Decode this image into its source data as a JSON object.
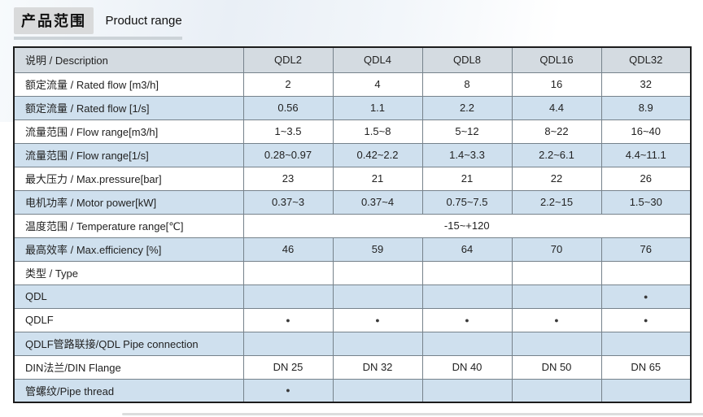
{
  "header": {
    "title_cn": "产品范围",
    "title_en": "Product range"
  },
  "table": {
    "columns": [
      "说明 / Description",
      "QDL2",
      "QDL4",
      "QDL8",
      "QDL16",
      "QDL32"
    ],
    "rows": [
      {
        "label": "额定流量 / Rated flow [m3/h]",
        "values": [
          "2",
          "4",
          "8",
          "16",
          "32"
        ],
        "shaded": false
      },
      {
        "label": "额定流量 / Rated flow [1/s]",
        "values": [
          "0.56",
          "1.1",
          "2.2",
          "4.4",
          "8.9"
        ],
        "shaded": true
      },
      {
        "label": "流量范围 / Flow range[m3/h]",
        "values": [
          "1~3.5",
          "1.5~8",
          "5~12",
          "8~22",
          "16~40"
        ],
        "shaded": false
      },
      {
        "label": "流量范围 / Flow range[1/s]",
        "values": [
          "0.28~0.97",
          "0.42~2.2",
          "1.4~3.3",
          "2.2~6.1",
          "4.4~11.1"
        ],
        "shaded": true
      },
      {
        "label": "最大压力 / Max.pressure[bar]",
        "values": [
          "23",
          "21",
          "21",
          "22",
          "26"
        ],
        "shaded": false
      },
      {
        "label": "电机功率 / Motor power[kW]",
        "values": [
          "0.37~3",
          "0.37~4",
          "0.75~7.5",
          "2.2~15",
          "1.5~30"
        ],
        "shaded": true
      },
      {
        "label": "温度范围 / Temperature range[℃]",
        "span_value": "-15~+120",
        "shaded": false
      },
      {
        "label": "最高效率 / Max.efficiency [%]",
        "values": [
          "46",
          "59",
          "64",
          "70",
          "76"
        ],
        "shaded": true
      },
      {
        "label": "类型 / Type",
        "values": [
          "",
          "",
          "",
          "",
          ""
        ],
        "shaded": false
      },
      {
        "label": "QDL",
        "values": [
          "",
          "",
          "",
          "",
          "●"
        ],
        "shaded": true
      },
      {
        "label": "QDLF",
        "values": [
          "●",
          "●",
          "●",
          "●",
          "●"
        ],
        "shaded": false
      },
      {
        "label": "QDLF管路联接/QDL Pipe connection",
        "values": [
          "",
          "",
          "",
          "",
          ""
        ],
        "shaded": true
      },
      {
        "label": "DIN法兰/DIN Flange",
        "values": [
          "DN 25",
          "DN 32",
          "DN 40",
          "DN 50",
          "DN 65"
        ],
        "shaded": false
      },
      {
        "label": "管螺纹/Pipe thread",
        "values": [
          "●",
          "",
          "",
          "",
          ""
        ],
        "shaded": true
      }
    ]
  },
  "colors": {
    "header_row_bg": "#d4dbe1",
    "shaded_row_bg": "#cfe0ee",
    "outer_border": "#1c1c1c",
    "inner_border": "#76828b",
    "title_box_bg": "#d9dadb",
    "underline": "#ccd3d8"
  }
}
